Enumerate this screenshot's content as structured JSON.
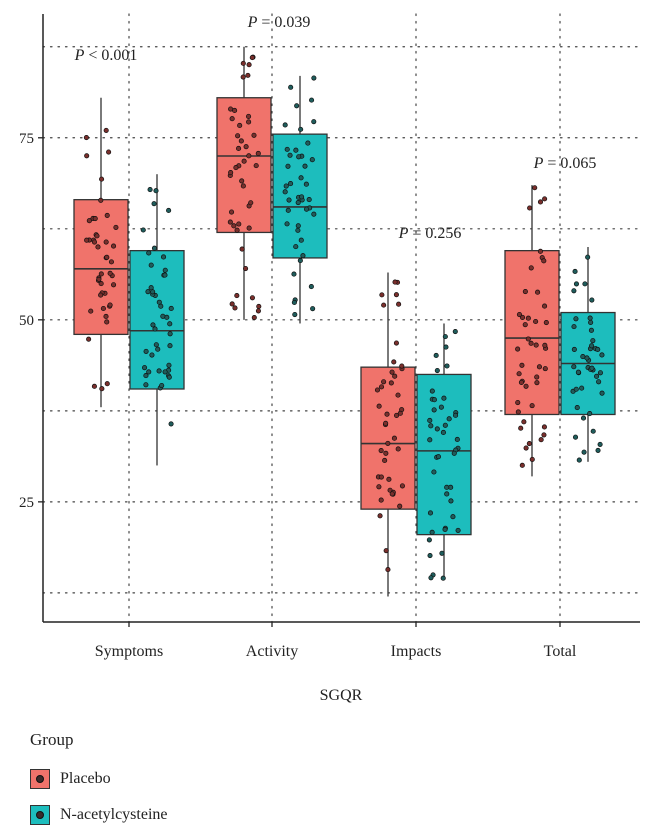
{
  "chart_data": {
    "type": "boxplot",
    "xlabel": "SGQR",
    "ylabel": "",
    "ylim": [
      8.5,
      92
    ],
    "yticks": [
      25,
      50,
      75
    ],
    "categories": [
      "Symptoms",
      "Activity",
      "Impacts",
      "Total"
    ],
    "pvalues": [
      "P < 0.001",
      "P = 0.039",
      "P = 0.256",
      "P = 0.065"
    ],
    "legend_title": "Group",
    "series": [
      {
        "name": "Placebo",
        "color": "#f0736b",
        "boxes": [
          {
            "min": 38,
            "q1": 48,
            "median": 57,
            "q3": 66.5,
            "max": 80.5
          },
          {
            "min": 50,
            "q1": 62,
            "median": 72.5,
            "q3": 80.5,
            "max": 87.5
          },
          {
            "min": 12,
            "q1": 24,
            "median": 33,
            "q3": 43.5,
            "max": 56.5
          },
          {
            "min": 28.5,
            "q1": 37,
            "median": 47.5,
            "q3": 59.5,
            "max": 68.5
          }
        ]
      },
      {
        "name": "N-acetylcysteine",
        "color": "#1dbdbd",
        "boxes": [
          {
            "min": 30,
            "q1": 40.5,
            "median": 48.5,
            "q3": 59.5,
            "max": 70
          },
          {
            "min": 49.5,
            "q1": 58.5,
            "median": 65.5,
            "q3": 75.5,
            "max": 83.5
          },
          {
            "min": 14.5,
            "q1": 20.5,
            "median": 32,
            "q3": 42.5,
            "max": 49.5
          },
          {
            "min": 30.5,
            "q1": 37,
            "median": 44,
            "q3": 51,
            "max": 60
          }
        ]
      }
    ]
  }
}
